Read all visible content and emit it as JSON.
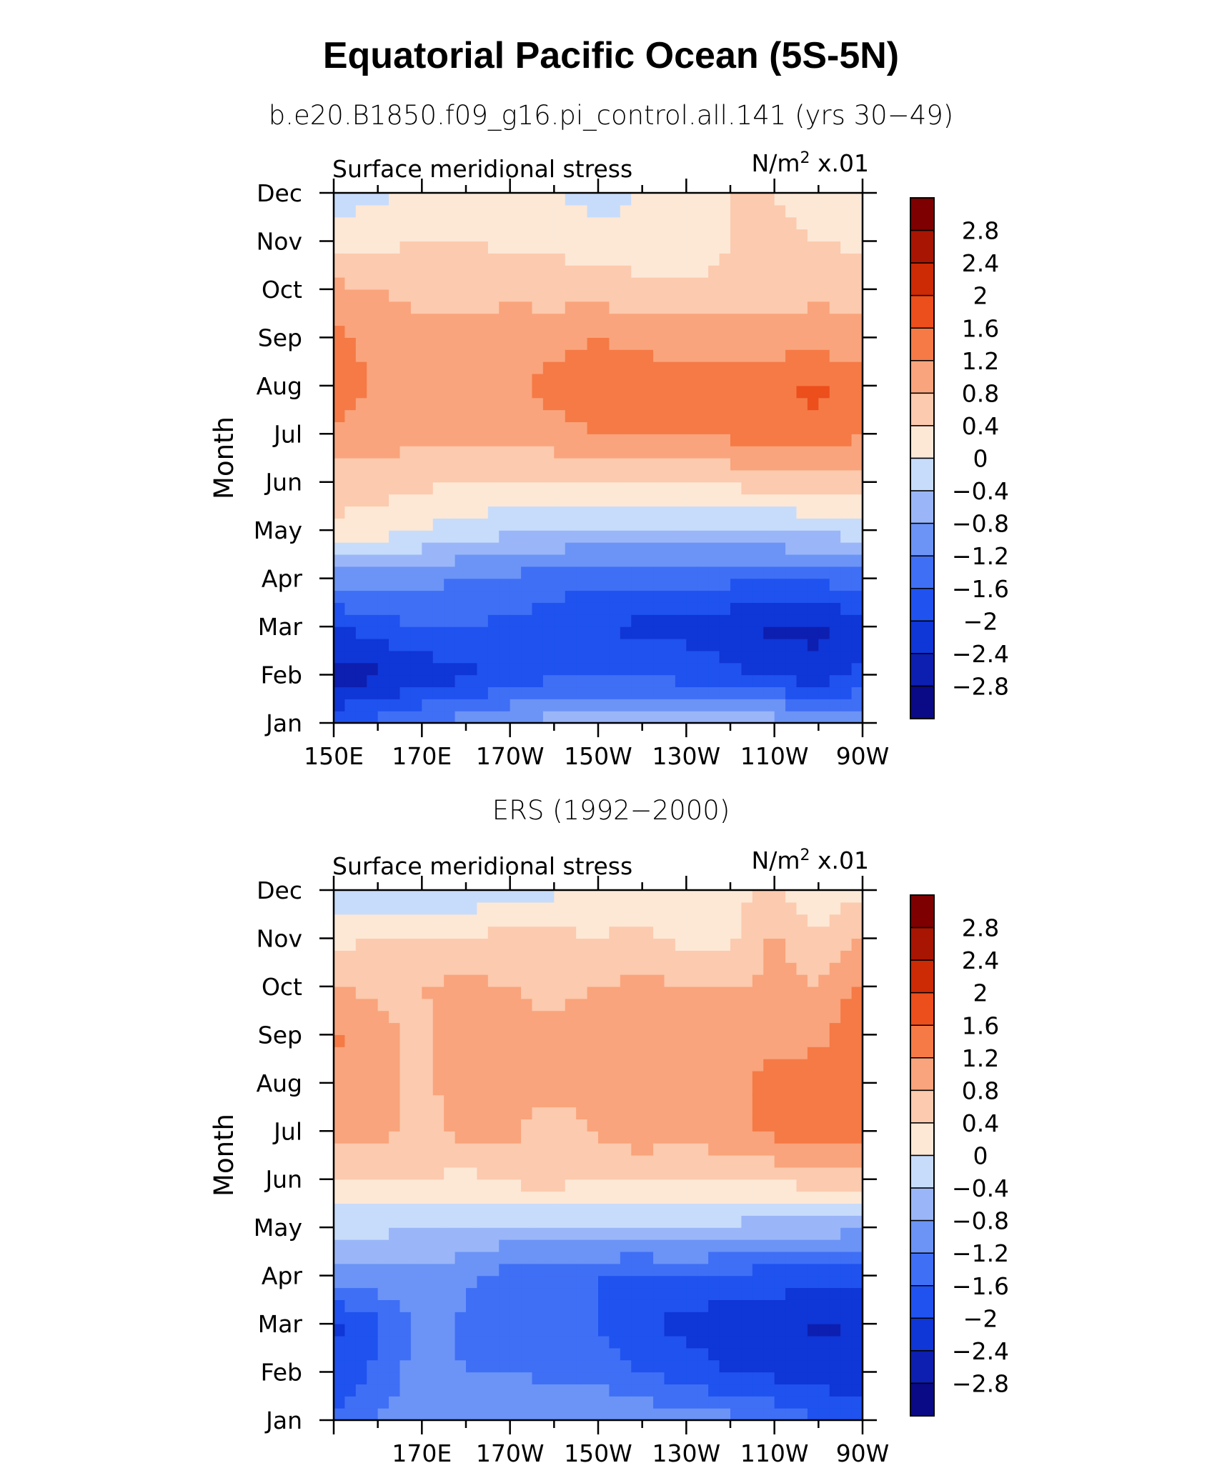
{
  "figure": {
    "title": "Equatorial Pacific Ocean (5S-5N)"
  },
  "colors": {
    "levels": [
      -2.8,
      -2.4,
      -2,
      -1.6,
      -1.2,
      -0.8,
      -0.4,
      0,
      0.4,
      0.8,
      1.2,
      1.6,
      2,
      2.4,
      2.8
    ],
    "fills": [
      "#0a0a86",
      "#0d1fb0",
      "#0f36d6",
      "#1f52ef",
      "#3f6ff5",
      "#6c94f6",
      "#9ab6f8",
      "#c7dcfa",
      "#fde8d6",
      "#fccaae",
      "#f9a47c",
      "#f57a46",
      "#ec4e1c",
      "#cd2a06",
      "#a81502",
      "#7e0000"
    ]
  },
  "chart_data": [
    {
      "type": "heatmap",
      "subtitle": "b.e20.B1850.f09_g16.pi_control.all.141 (yrs 30−49)",
      "variable": "Surface meridional stress",
      "units_prefix": "N/m",
      "units_power": "2",
      "units_suffix": " x.01",
      "ylabel": "Month",
      "yticks": [
        "Jan",
        "Feb",
        "Mar",
        "Apr",
        "May",
        "Jun",
        "Jul",
        "Aug",
        "Sep",
        "Oct",
        "Nov",
        "Dec"
      ],
      "xrange": [
        150,
        270
      ],
      "xticks": [
        {
          "value": 150,
          "label": "150E"
        },
        {
          "value": 170,
          "label": "170E"
        },
        {
          "value": 190,
          "label": "170W"
        },
        {
          "value": 210,
          "label": "150W"
        },
        {
          "value": 230,
          "label": "130W"
        },
        {
          "value": 250,
          "label": "110W"
        },
        {
          "value": 270,
          "label": "90W"
        }
      ],
      "colorbar_labels": [
        "2.8",
        "2.4",
        "2",
        "1.6",
        "1.2",
        "0.8",
        "0.4",
        "0",
        "−0.4",
        "−0.8",
        "−1.2",
        "−1.6",
        "−2",
        "−2.4",
        "−2.8"
      ],
      "longitudes": [
        150,
        160,
        170,
        180,
        190,
        200,
        210,
        220,
        230,
        240,
        250,
        260,
        270
      ],
      "values": [
        [
          -1.7,
          -1.5,
          -1.2,
          -1.0,
          -0.8,
          -0.6,
          -0.5,
          -0.4,
          -0.3,
          -0.4,
          -0.6,
          -0.8,
          -1.0
        ],
        [
          -2.6,
          -2.5,
          -2.3,
          -2.1,
          -1.9,
          -1.7,
          -1.7,
          -1.7,
          -1.8,
          -1.9,
          -2.1,
          -2.3,
          -1.9
        ],
        [
          -2.0,
          -1.8,
          -1.6,
          -1.6,
          -1.7,
          -1.8,
          -2.0,
          -2.1,
          -2.1,
          -2.3,
          -2.5,
          -2.5,
          -2.1
        ],
        [
          -1.0,
          -1.0,
          -1.1,
          -1.2,
          -1.3,
          -1.4,
          -1.5,
          -1.5,
          -1.5,
          -1.5,
          -1.5,
          -1.5,
          -1.4
        ],
        [
          0.3,
          0.2,
          0.0,
          -0.2,
          -0.3,
          -0.4,
          -0.5,
          -0.5,
          -0.5,
          -0.4,
          -0.4,
          -0.3,
          -0.2
        ],
        [
          0.6,
          0.6,
          0.5,
          0.4,
          0.4,
          0.3,
          0.3,
          0.3,
          0.4,
          0.5,
          0.6,
          0.6,
          0.7
        ],
        [
          1.1,
          1.0,
          0.9,
          0.9,
          1.0,
          1.1,
          1.2,
          1.2,
          1.3,
          1.3,
          1.4,
          1.5,
          1.2
        ],
        [
          1.6,
          1.1,
          1.0,
          1.0,
          1.1,
          1.3,
          1.4,
          1.4,
          1.4,
          1.4,
          1.5,
          1.7,
          1.4
        ],
        [
          1.3,
          1.0,
          0.9,
          0.9,
          1.0,
          1.1,
          1.2,
          1.1,
          1.0,
          1.0,
          1.0,
          1.0,
          0.9
        ],
        [
          0.9,
          0.8,
          0.7,
          0.7,
          0.7,
          0.6,
          0.6,
          0.5,
          0.5,
          0.5,
          0.6,
          0.7,
          0.7
        ],
        [
          0.3,
          0.3,
          0.4,
          0.4,
          0.3,
          0.3,
          0.2,
          0.2,
          0.1,
          0.4,
          0.5,
          0.4,
          0.3
        ],
        [
          -0.3,
          -0.1,
          0.1,
          0.2,
          0.2,
          0.0,
          -0.2,
          0.0,
          0.2,
          0.4,
          0.4,
          0.2,
          0.1
        ]
      ]
    },
    {
      "type": "heatmap",
      "subtitle": "ERS (1992−2000)",
      "variable": "Surface meridional stress",
      "units_prefix": "N/m",
      "units_power": "2",
      "units_suffix": " x.01",
      "ylabel": "Month",
      "yticks": [
        "Jan",
        "Feb",
        "Mar",
        "Apr",
        "May",
        "Jun",
        "Jul",
        "Aug",
        "Sep",
        "Oct",
        "Nov",
        "Dec"
      ],
      "xrange": [
        150,
        270
      ],
      "xticks": [
        {
          "value": 150,
          "label": ""
        },
        {
          "value": 170,
          "label": "170E"
        },
        {
          "value": 190,
          "label": "170W"
        },
        {
          "value": 210,
          "label": "150W"
        },
        {
          "value": 230,
          "label": "130W"
        },
        {
          "value": 250,
          "label": "110W"
        },
        {
          "value": 270,
          "label": "90W"
        }
      ],
      "colorbar_labels": [
        "2.8",
        "2.4",
        "2",
        "1.6",
        "1.2",
        "0.8",
        "0.4",
        "0",
        "−0.4",
        "−0.8",
        "−1.2",
        "−1.6",
        "−2",
        "−2.4",
        "−2.8"
      ],
      "longitudes": [
        150,
        160,
        170,
        180,
        190,
        200,
        210,
        220,
        230,
        240,
        250,
        260,
        270
      ],
      "values": [
        [
          -1.5,
          -1.2,
          -0.9,
          -1.0,
          -0.8,
          -0.9,
          -0.8,
          -0.9,
          -1.0,
          -1.1,
          -1.3,
          -1.6,
          -1.8
        ],
        [
          -1.9,
          -1.5,
          -1.0,
          -1.2,
          -1.2,
          -1.3,
          -1.4,
          -1.6,
          -1.8,
          -2.0,
          -2.1,
          -2.2,
          -2.3
        ],
        [
          -2.1,
          -1.7,
          -1.0,
          -1.3,
          -1.4,
          -1.5,
          -1.6,
          -2.0,
          -2.1,
          -2.3,
          -2.3,
          -2.5,
          -2.3
        ],
        [
          -0.9,
          -0.9,
          -0.9,
          -1.1,
          -1.4,
          -1.5,
          -1.6,
          -1.7,
          -1.6,
          -1.7,
          -1.8,
          -1.8,
          -1.9
        ],
        [
          -0.3,
          -0.3,
          -0.4,
          -0.4,
          -0.5,
          -0.5,
          -0.5,
          -0.4,
          -0.4,
          -0.5,
          -0.6,
          -0.6,
          -0.7
        ],
        [
          0.5,
          0.4,
          0.4,
          0.3,
          0.5,
          0.6,
          0.4,
          0.5,
          0.4,
          0.4,
          0.5,
          0.6,
          0.6
        ],
        [
          0.9,
          0.9,
          0.7,
          0.9,
          0.9,
          0.5,
          0.9,
          1.0,
          1.0,
          1.1,
          1.3,
          1.5,
          1.4
        ],
        [
          1.0,
          0.9,
          0.7,
          1.0,
          1.0,
          1.0,
          1.1,
          1.1,
          1.0,
          1.0,
          1.4,
          1.4,
          1.5
        ],
        [
          1.3,
          0.9,
          0.7,
          1.0,
          0.9,
          0.9,
          1.0,
          1.0,
          0.9,
          0.9,
          1.0,
          1.1,
          1.5
        ],
        [
          0.8,
          0.7,
          0.8,
          0.9,
          0.8,
          0.7,
          0.8,
          0.9,
          0.8,
          0.8,
          0.9,
          0.8,
          1.3
        ],
        [
          0.3,
          0.4,
          0.5,
          0.4,
          0.6,
          0.5,
          0.4,
          0.5,
          0.3,
          0.3,
          0.9,
          0.4,
          0.8
        ],
        [
          -0.3,
          -0.3,
          -0.4,
          -0.3,
          -0.2,
          -0.1,
          0.2,
          0.1,
          0.2,
          0.3,
          0.4,
          0.2,
          0.3
        ]
      ]
    }
  ]
}
